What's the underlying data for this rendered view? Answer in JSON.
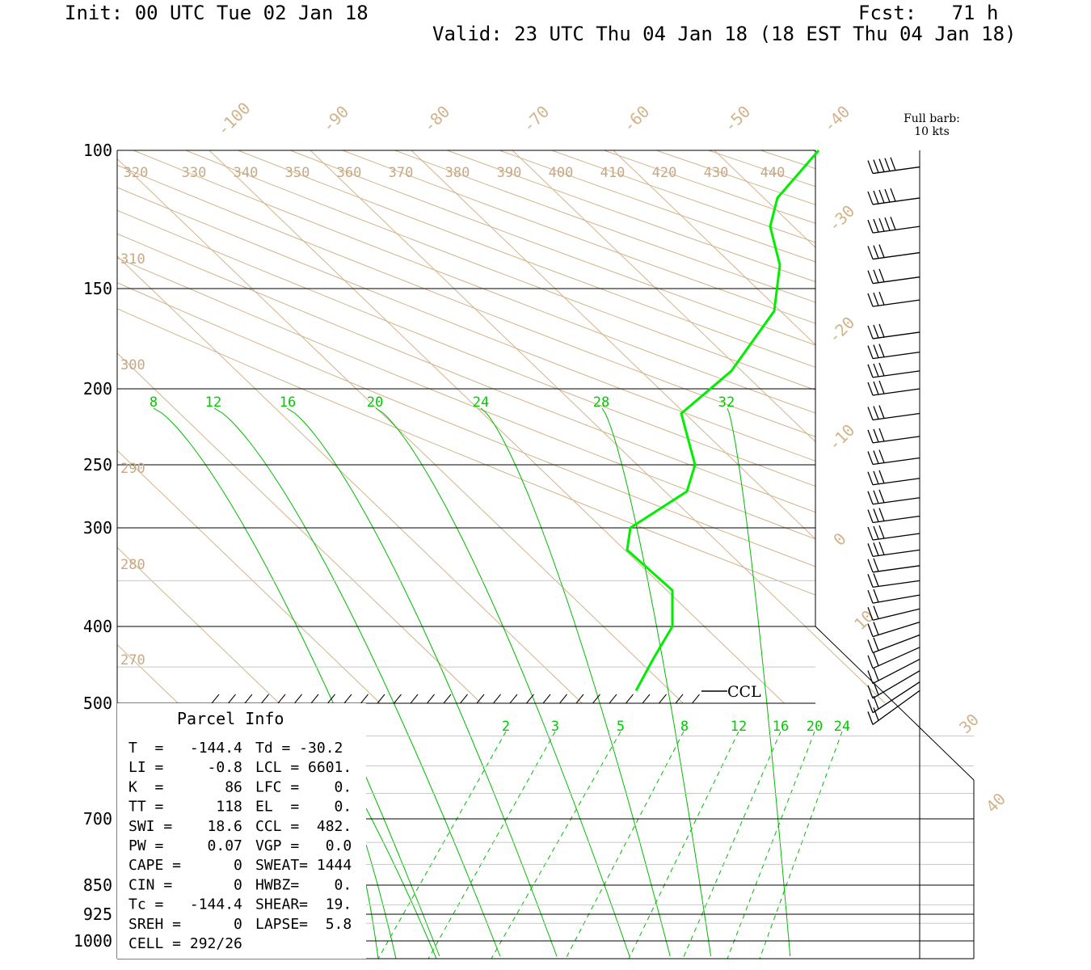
{
  "header": {
    "init": "Init: 00 UTC Tue 02 Jan 18",
    "fcst": "Fcst:   71 h",
    "valid": "Valid: 23 UTC Thu 04 Jan 18 (18 EST Thu 04 Jan 18)"
  },
  "barb_note": {
    "line1": "Full barb:",
    "line2": "10 kts"
  },
  "ccl_label": "CCL",
  "parcel_info": {
    "title": "Parcel Info",
    "rows": [
      [
        "T  =   -144.4",
        "Td = -30.2"
      ],
      [
        "LI =     -0.8",
        "LCL = 6601."
      ],
      [
        "K  =       86",
        "LFC =    0."
      ],
      [
        "TT =      118",
        "EL  =    0."
      ],
      [
        "SWI =    18.6",
        "CCL =  482."
      ],
      [
        "PW =     0.07",
        "VGP =   0.0"
      ],
      [
        "CAPE =      0",
        "SWEAT= 1444"
      ],
      [
        "CIN =       0",
        "HWBZ=    0."
      ],
      [
        "Tc =   -144.4",
        "SHEAR=  19."
      ],
      [
        "SREH =      0",
        "LAPSE=  5.8"
      ],
      [
        "CELL = 292/26",
        ""
      ]
    ]
  },
  "chart_data": {
    "type": "line",
    "subtype": "skew-T log-P sounding",
    "y_axis": {
      "label": "",
      "unit": "hPa",
      "scale": "log",
      "range": [
        1000,
        100
      ],
      "ticks": [
        "100",
        "150",
        "200",
        "250",
        "300",
        "400",
        "500",
        "700",
        "850",
        "925",
        "1000"
      ]
    },
    "temperature_labels": [
      "-100",
      "-90",
      "-80",
      "-70",
      "-60",
      "-50",
      "-40",
      "-30",
      "-20",
      "-10",
      "0",
      "10",
      "30",
      "40"
    ],
    "theta_labels_top": [
      "320",
      "330",
      "340",
      "350",
      "360",
      "370",
      "380",
      "390",
      "400",
      "410",
      "420",
      "430",
      "440"
    ],
    "theta_labels_left": [
      "310",
      "300",
      "290",
      "280",
      "270"
    ],
    "mixing_ratio_labels_upper": [
      "8",
      "12",
      "16",
      "20",
      "24",
      "28",
      "32"
    ],
    "mixing_ratio_labels_lower": [
      "2",
      "3",
      "5",
      "8",
      "12",
      "16",
      "20",
      "24"
    ],
    "series": [
      {
        "color": "#00ee00",
        "points": [
          {
            "p": 100,
            "t": -40
          },
          {
            "p": 115,
            "t": -45
          },
          {
            "p": 125,
            "t": -43
          },
          {
            "p": 140,
            "t": -40
          },
          {
            "p": 160,
            "t": -38
          },
          {
            "p": 190,
            "t": -38
          },
          {
            "p": 215,
            "t": -43
          },
          {
            "p": 250,
            "t": -34
          },
          {
            "p": 270,
            "t": -35
          },
          {
            "p": 300,
            "t": -39
          },
          {
            "p": 320,
            "t": -37
          },
          {
            "p": 360,
            "t": -31
          },
          {
            "p": 400,
            "t": -28
          },
          {
            "p": 440,
            "t": -28
          },
          {
            "p": 482,
            "t": -30
          }
        ]
      }
    ],
    "wind_barbs_pressure_hPa": [
      105,
      115,
      125,
      135,
      145,
      155,
      170,
      180,
      190,
      200,
      215,
      230,
      245,
      260,
      275,
      290,
      305,
      320,
      335,
      350,
      365,
      380,
      395,
      410,
      425,
      440,
      455,
      470,
      482
    ],
    "grid": true,
    "legend": "none"
  }
}
